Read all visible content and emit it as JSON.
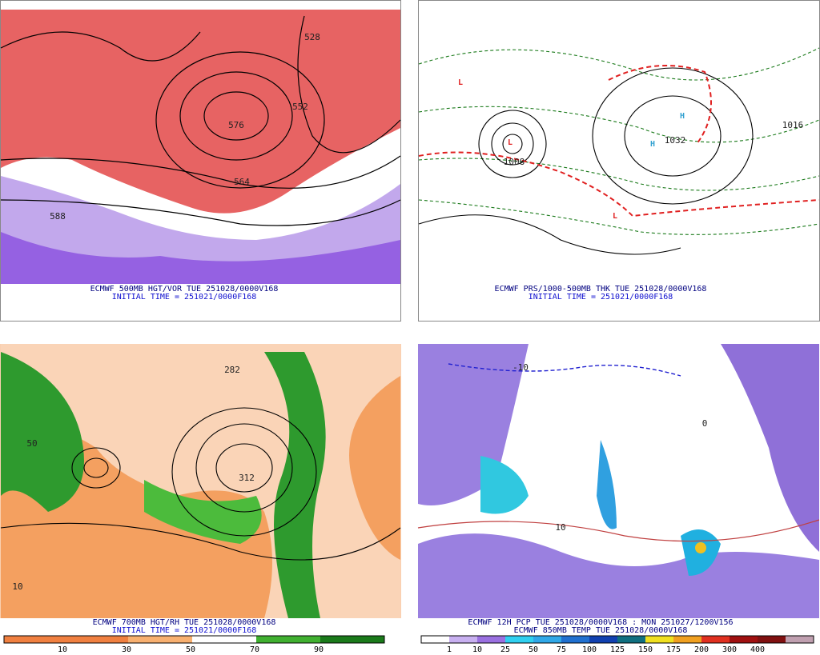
{
  "panels": [
    {
      "caption": "ECMWF 500MB HGT/VOR TUE 251028/0000V168",
      "initial": "INITIAL TIME = 251021/0000F168",
      "labels": [
        "576",
        "552",
        "528",
        "564",
        "588"
      ]
    },
    {
      "caption": "ECMWF PRS/1000-500MB THK TUE 251028/0000V168",
      "initial": "INITIAL TIME = 251021/0000F168",
      "labels": [
        "H",
        "H",
        "L",
        "L",
        "L",
        "1032",
        "1016",
        "1008"
      ]
    },
    {
      "caption": "ECMWF 700MB HGT/RH TUE 251028/0000V168",
      "initial": "INITIAL TIME = 251021/0000F168",
      "labels": [
        "312",
        "282",
        "10",
        "50"
      ],
      "colorbar": [
        "10",
        "30",
        "50",
        "70",
        "90"
      ]
    },
    {
      "caption": "ECMWF 12H PCP TUE 251028/0000V168 : MON 251027/1200V156",
      "initial": "ECMWF 850MB TEMP TUE 251028/0000V168",
      "labels": [
        "-10",
        "0",
        "10"
      ],
      "colorbar": [
        "1",
        "10",
        "25",
        "50",
        "75",
        "100",
        "125",
        "150",
        "175",
        "200",
        "300",
        "400"
      ]
    }
  ]
}
